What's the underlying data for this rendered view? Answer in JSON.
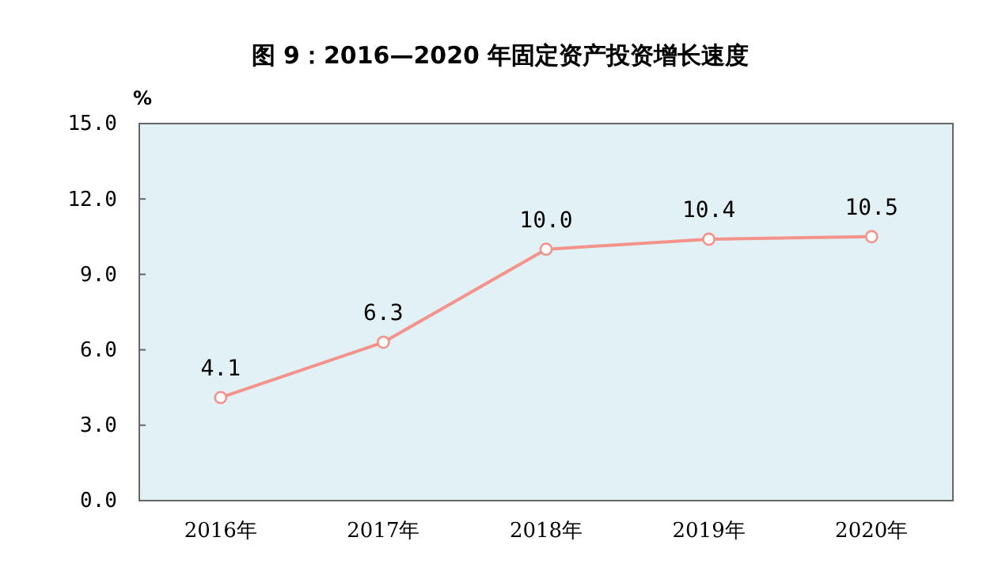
{
  "chart_data": {
    "type": "line",
    "title": "图 9：2016—2020 年固定资产投资增长速度",
    "ylabel": "%",
    "categories": [
      "2016年",
      "2017年",
      "2018年",
      "2019年",
      "2020年"
    ],
    "series": [
      {
        "color": "#f4938b",
        "values": [
          4.1,
          6.3,
          10.0,
          10.4,
          10.5
        ],
        "value_labels": [
          "4.1",
          "6.3",
          "10.0",
          "10.4",
          "10.5"
        ]
      }
    ],
    "ylim": [
      0,
      15
    ],
    "yticks": [
      {
        "value": 0,
        "label": "0.0"
      },
      {
        "value": 3,
        "label": "3.0"
      },
      {
        "value": 6,
        "label": "6.0"
      },
      {
        "value": 9,
        "label": "9.0"
      },
      {
        "value": 12,
        "label": "12.0"
      },
      {
        "value": 15,
        "label": "15.0"
      }
    ],
    "marker": "circle",
    "line_style": "solid",
    "grid": false
  }
}
